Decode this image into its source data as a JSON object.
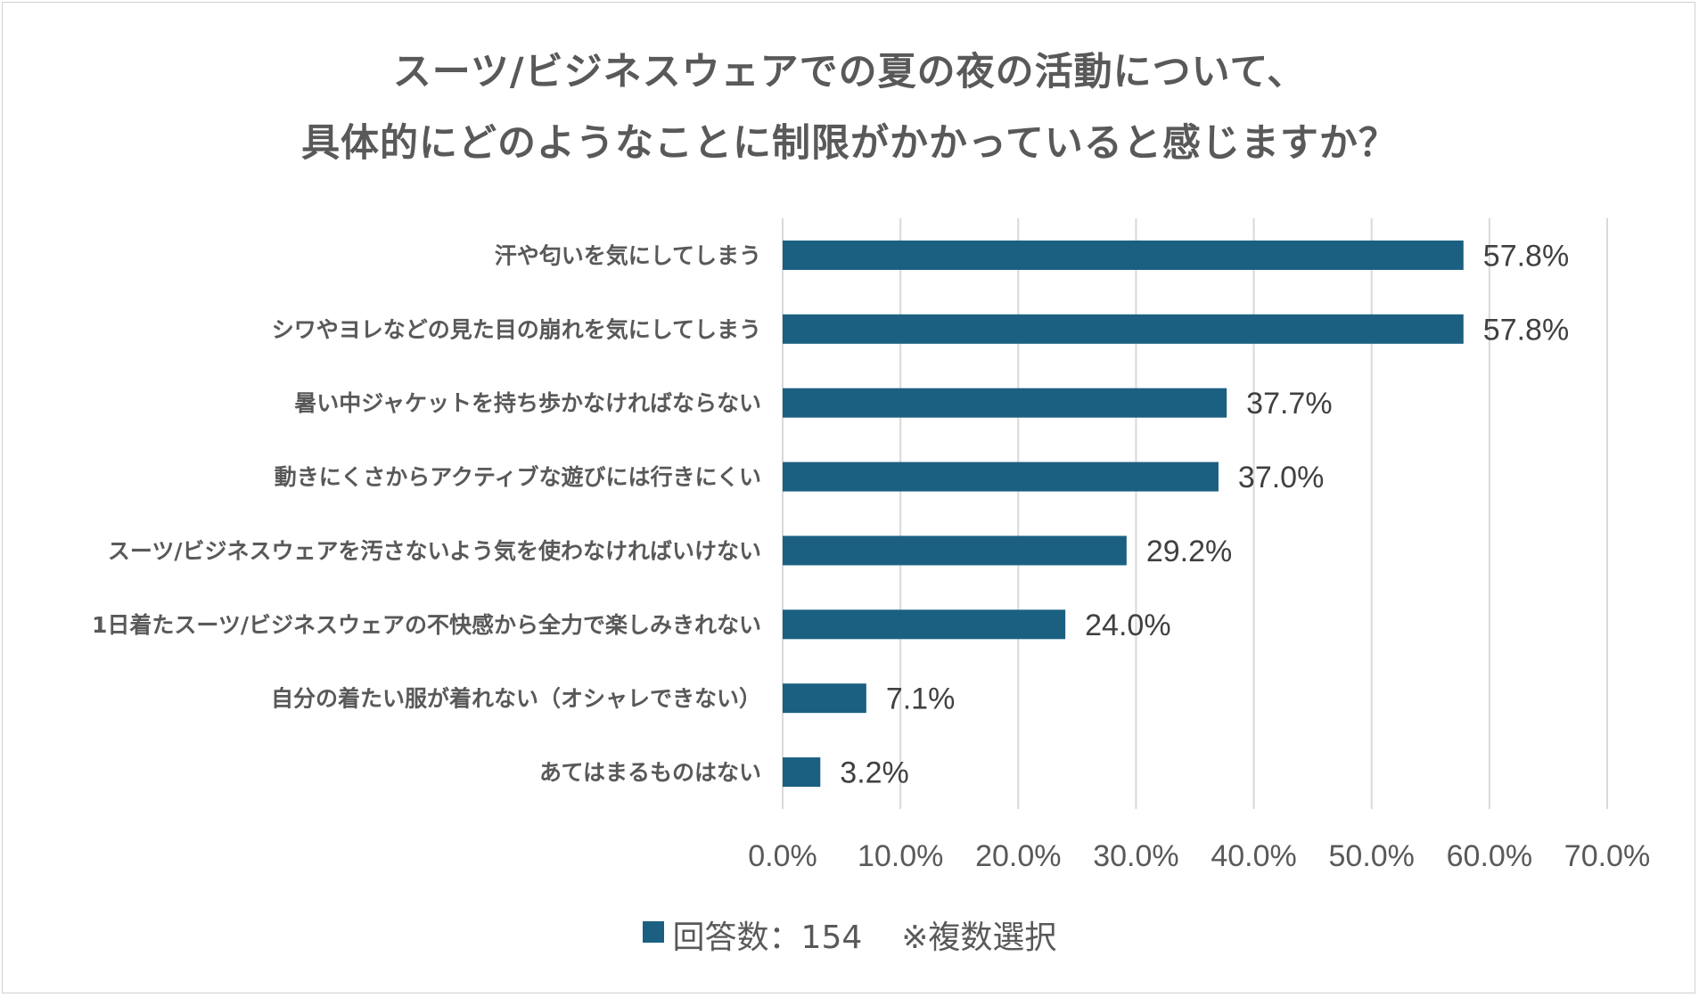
{
  "colors": {
    "bar": "#1b6081",
    "grid": "#d9d9d9",
    "text": "#595959"
  },
  "chart_data": {
    "type": "bar",
    "orientation": "horizontal",
    "title_lines": [
      "スーツ/ビジネスウェアでの夏の夜の活動について、",
      "具体的にどのようなことに制限がかかっていると感じますか？"
    ],
    "categories": [
      "汗や匂いを気にしてしまう",
      "シワやヨレなどの見た目の崩れを気にしてしまう",
      "暑い中ジャケットを持ち歩かなければならない",
      "動きにくさからアクティブな遊びには行きにくい",
      "スーツ/ビジネスウェアを汚さないよう気を使わなければいけない",
      "1日着たスーツ/ビジネスウェアの不快感から全力で楽しみきれない",
      "自分の着たい服が着れない（オシャレできない）",
      "あてはまるものはない"
    ],
    "series": [
      {
        "name": "回答数：154",
        "values": [
          57.8,
          57.8,
          37.7,
          37.0,
          29.2,
          24.0,
          7.1,
          3.2
        ],
        "labels": [
          "57.8%",
          "57.8%",
          "37.7%",
          "37.0%",
          "29.2%",
          "24.0%",
          "7.1%",
          "3.2%"
        ]
      }
    ],
    "x_ticks": [
      0,
      10,
      20,
      30,
      40,
      50,
      60,
      70
    ],
    "x_tick_labels": [
      "0.0%",
      "10.0%",
      "20.0%",
      "30.0%",
      "40.0%",
      "50.0%",
      "60.0%",
      "70.0%"
    ],
    "xlim": [
      0,
      70
    ],
    "grid": true,
    "legend_position": "bottom",
    "legend_note": "※複数選択"
  }
}
